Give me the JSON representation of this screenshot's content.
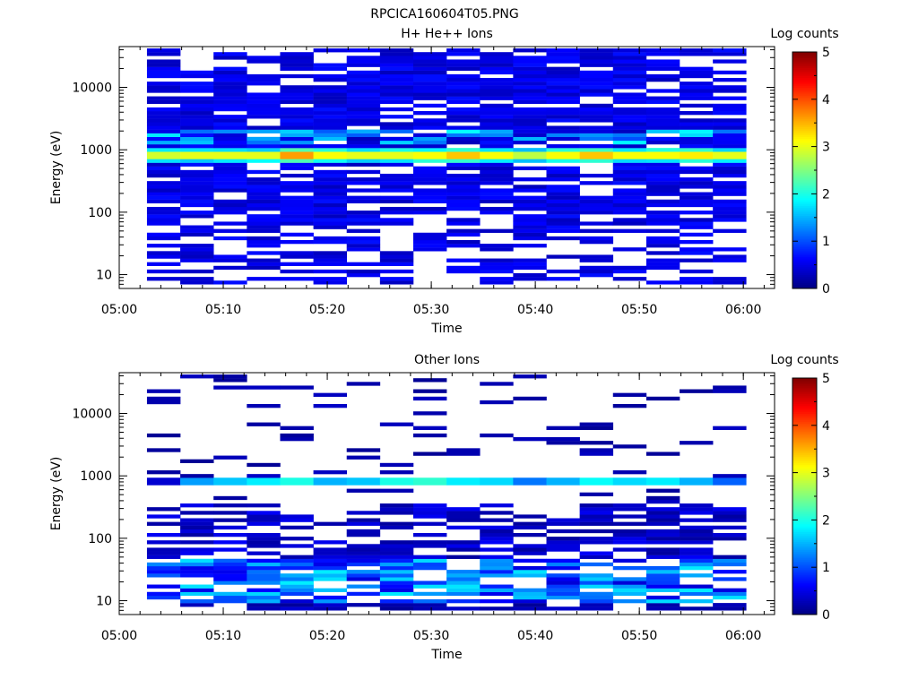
{
  "figure_title": "RPCICA160604T05.PNG",
  "colormap": [
    "#000080",
    "#0000ff",
    "#0080ff",
    "#00ffff",
    "#80ff80",
    "#ffff00",
    "#ff8000",
    "#ff0000",
    "#800000"
  ],
  "chart_data": [
    {
      "type": "heatmap",
      "title": "H+ He++ Ions",
      "xlabel": "Time",
      "ylabel": "Energy (eV)",
      "colorbar_label": "Log counts",
      "x_ticks": [
        "05:00",
        "05:10",
        "05:20",
        "05:30",
        "05:40",
        "05:50",
        "06:00"
      ],
      "y_ticks": [
        "10",
        "100",
        "1000",
        "10000"
      ],
      "colorbar_ticks": [
        "0",
        "1",
        "2",
        "3",
        "4",
        "5"
      ],
      "xlim": [
        "05:00",
        "06:03"
      ],
      "ylim": [
        6,
        45000
      ],
      "yscale": "log",
      "clim": [
        0,
        5
      ],
      "time_bins_start": "05:02:40",
      "time_bin_width_min": 3.2,
      "time_bin_count": 18,
      "peak_energy_ev": 830,
      "peak_log_counts": [
        2.9,
        3.0,
        3.0,
        3.0,
        3.6,
        3.1,
        3.0,
        3.0,
        3.1,
        3.4,
        3.1,
        2.8,
        3.1,
        3.4,
        3.1,
        3.1,
        3.2,
        3.0
      ],
      "background_log_counts": [
        0.3,
        0.7
      ],
      "data_energy_range_ev": [
        7,
        42000
      ]
    },
    {
      "type": "heatmap",
      "title": "Other Ions",
      "xlabel": "Time",
      "ylabel": "Energy (eV)",
      "colorbar_label": "Log counts",
      "x_ticks": [
        "05:00",
        "05:10",
        "05:20",
        "05:30",
        "05:40",
        "05:50",
        "06:00"
      ],
      "y_ticks": [
        "10",
        "100",
        "1000",
        "10000"
      ],
      "colorbar_ticks": [
        "0",
        "1",
        "2",
        "3",
        "4",
        "5"
      ],
      "xlim": [
        "05:00",
        "06:03"
      ],
      "ylim": [
        6,
        45000
      ],
      "yscale": "log",
      "clim": [
        0,
        5
      ],
      "time_bins_start": "05:02:40",
      "time_bin_width_min": 3.2,
      "time_bin_count": 18,
      "peak_energy_ev": 780,
      "peak_log_counts": [
        0.4,
        1.4,
        1.6,
        1.8,
        2.0,
        1.5,
        1.6,
        2.0,
        2.1,
        1.8,
        1.7,
        1.2,
        1.5,
        1.9,
        1.7,
        1.8,
        1.5,
        1.1
      ],
      "low_energy_log_counts": [
        0.4,
        1.8
      ],
      "data_energy_range_ev": [
        7,
        42000
      ]
    }
  ]
}
